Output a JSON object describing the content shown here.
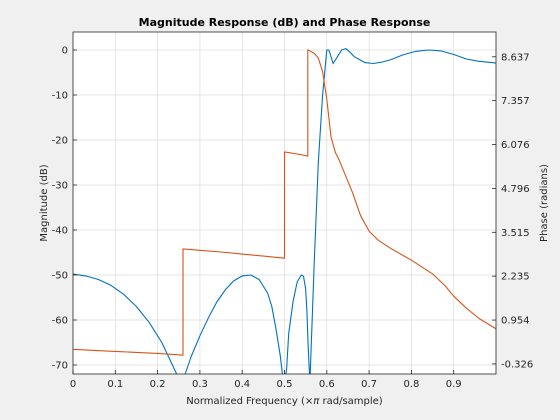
{
  "chart_data": {
    "type": "line",
    "title": "Magnitude Response (dB) and Phase Response",
    "xlabel_parts": [
      "Normalized Frequency (",
      "×π",
      " rad/sample)"
    ],
    "ylabel_left": "Magnitude (dB)",
    "ylabel_right": "Phase (radians)",
    "xlim": [
      0,
      1
    ],
    "ylim_left": [
      -72,
      4
    ],
    "ylim_right": [
      -0.62,
      9.36
    ],
    "x_ticks": [
      0,
      0.1,
      0.2,
      0.3,
      0.4,
      0.5,
      0.6,
      0.7,
      0.8,
      0.9
    ],
    "x_tick_labels": [
      "0",
      "0.1",
      "0.2",
      "0.3",
      "0.4",
      "0.5",
      "0.6",
      "0.7",
      "0.8",
      "0.9"
    ],
    "y_left_ticks": [
      0,
      -10,
      -20,
      -30,
      -40,
      -50,
      -60,
      -70
    ],
    "y_left_tick_labels": [
      "0",
      "-10",
      "-20",
      "-30",
      "-40",
      "-50",
      "-60",
      "-70"
    ],
    "y_right_ticks": [
      8.637,
      7.357,
      6.076,
      4.796,
      3.515,
      2.235,
      0.954,
      -0.326
    ],
    "y_right_tick_labels": [
      "8.637",
      "7.357",
      "6.076",
      "4.796",
      "3.515",
      "2.235",
      "0.954",
      "-0.326"
    ],
    "grid": true,
    "colors": {
      "magnitude": "#0072BD",
      "phase": "#D95319"
    },
    "series": [
      {
        "axis": "left",
        "color": "#0072BD",
        "x": [
          0,
          0.03,
          0.06,
          0.09,
          0.12,
          0.15,
          0.18,
          0.21,
          0.23,
          0.25,
          0.26,
          0.265,
          0.28,
          0.3,
          0.32,
          0.34,
          0.36,
          0.38,
          0.4,
          0.42,
          0.44,
          0.46,
          0.47,
          0.48,
          0.49,
          0.495,
          0.5,
          0.505,
          0.51,
          0.52,
          0.53,
          0.54,
          0.545,
          0.55,
          0.553,
          0.556,
          0.56,
          0.57,
          0.58,
          0.59,
          0.6,
          0.605,
          0.615,
          0.625,
          0.635,
          0.645,
          0.655,
          0.665,
          0.675,
          0.69,
          0.71,
          0.73,
          0.75,
          0.78,
          0.81,
          0.84,
          0.87,
          0.9,
          0.93,
          0.96,
          0.99,
          1.0
        ],
        "y": [
          -49.8,
          -50.2,
          -51,
          -52.3,
          -54.3,
          -57,
          -60.5,
          -65,
          -69,
          -73,
          -74,
          -72,
          -68,
          -63.5,
          -59.5,
          -56,
          -53.3,
          -51.3,
          -50.2,
          -50,
          -51,
          -54,
          -57,
          -62,
          -68,
          -72,
          -74,
          -71,
          -63,
          -56,
          -51.5,
          -50,
          -50.3,
          -53,
          -58,
          -66,
          -74,
          -48,
          -25,
          -10,
          0,
          0,
          -3,
          -1.5,
          0,
          0.3,
          -0.5,
          -1.5,
          -2,
          -2.8,
          -3,
          -2.7,
          -2.2,
          -1.1,
          -0.3,
          0,
          -0.2,
          -1,
          -2,
          -2.5,
          -2.8,
          -2.9
        ]
      },
      {
        "axis": "right",
        "color": "#D95319",
        "x": [
          0,
          0.05,
          0.1,
          0.15,
          0.2,
          0.25,
          0.257,
          0.26,
          0.26,
          0.3,
          0.35,
          0.4,
          0.45,
          0.5,
          0.5,
          0.53,
          0.555,
          0.555,
          0.57,
          0.58,
          0.59,
          0.6,
          0.61,
          0.62,
          0.63,
          0.64,
          0.65,
          0.66,
          0.67,
          0.68,
          0.7,
          0.72,
          0.75,
          0.8,
          0.85,
          0.88,
          0.9,
          0.93,
          0.96,
          1.0
        ],
        "y": [
          0.1,
          0.07,
          0.04,
          0.01,
          -0.02,
          -0.06,
          -0.07,
          -0.07,
          3.03,
          2.99,
          2.94,
          2.88,
          2.82,
          2.76,
          5.86,
          5.8,
          5.74,
          8.84,
          8.74,
          8.6,
          8.2,
          7.4,
          6.3,
          5.85,
          5.6,
          5.3,
          5.0,
          4.7,
          4.35,
          4.0,
          3.55,
          3.3,
          3.05,
          2.7,
          2.3,
          1.95,
          1.65,
          1.3,
          1.0,
          0.7
        ]
      }
    ]
  }
}
